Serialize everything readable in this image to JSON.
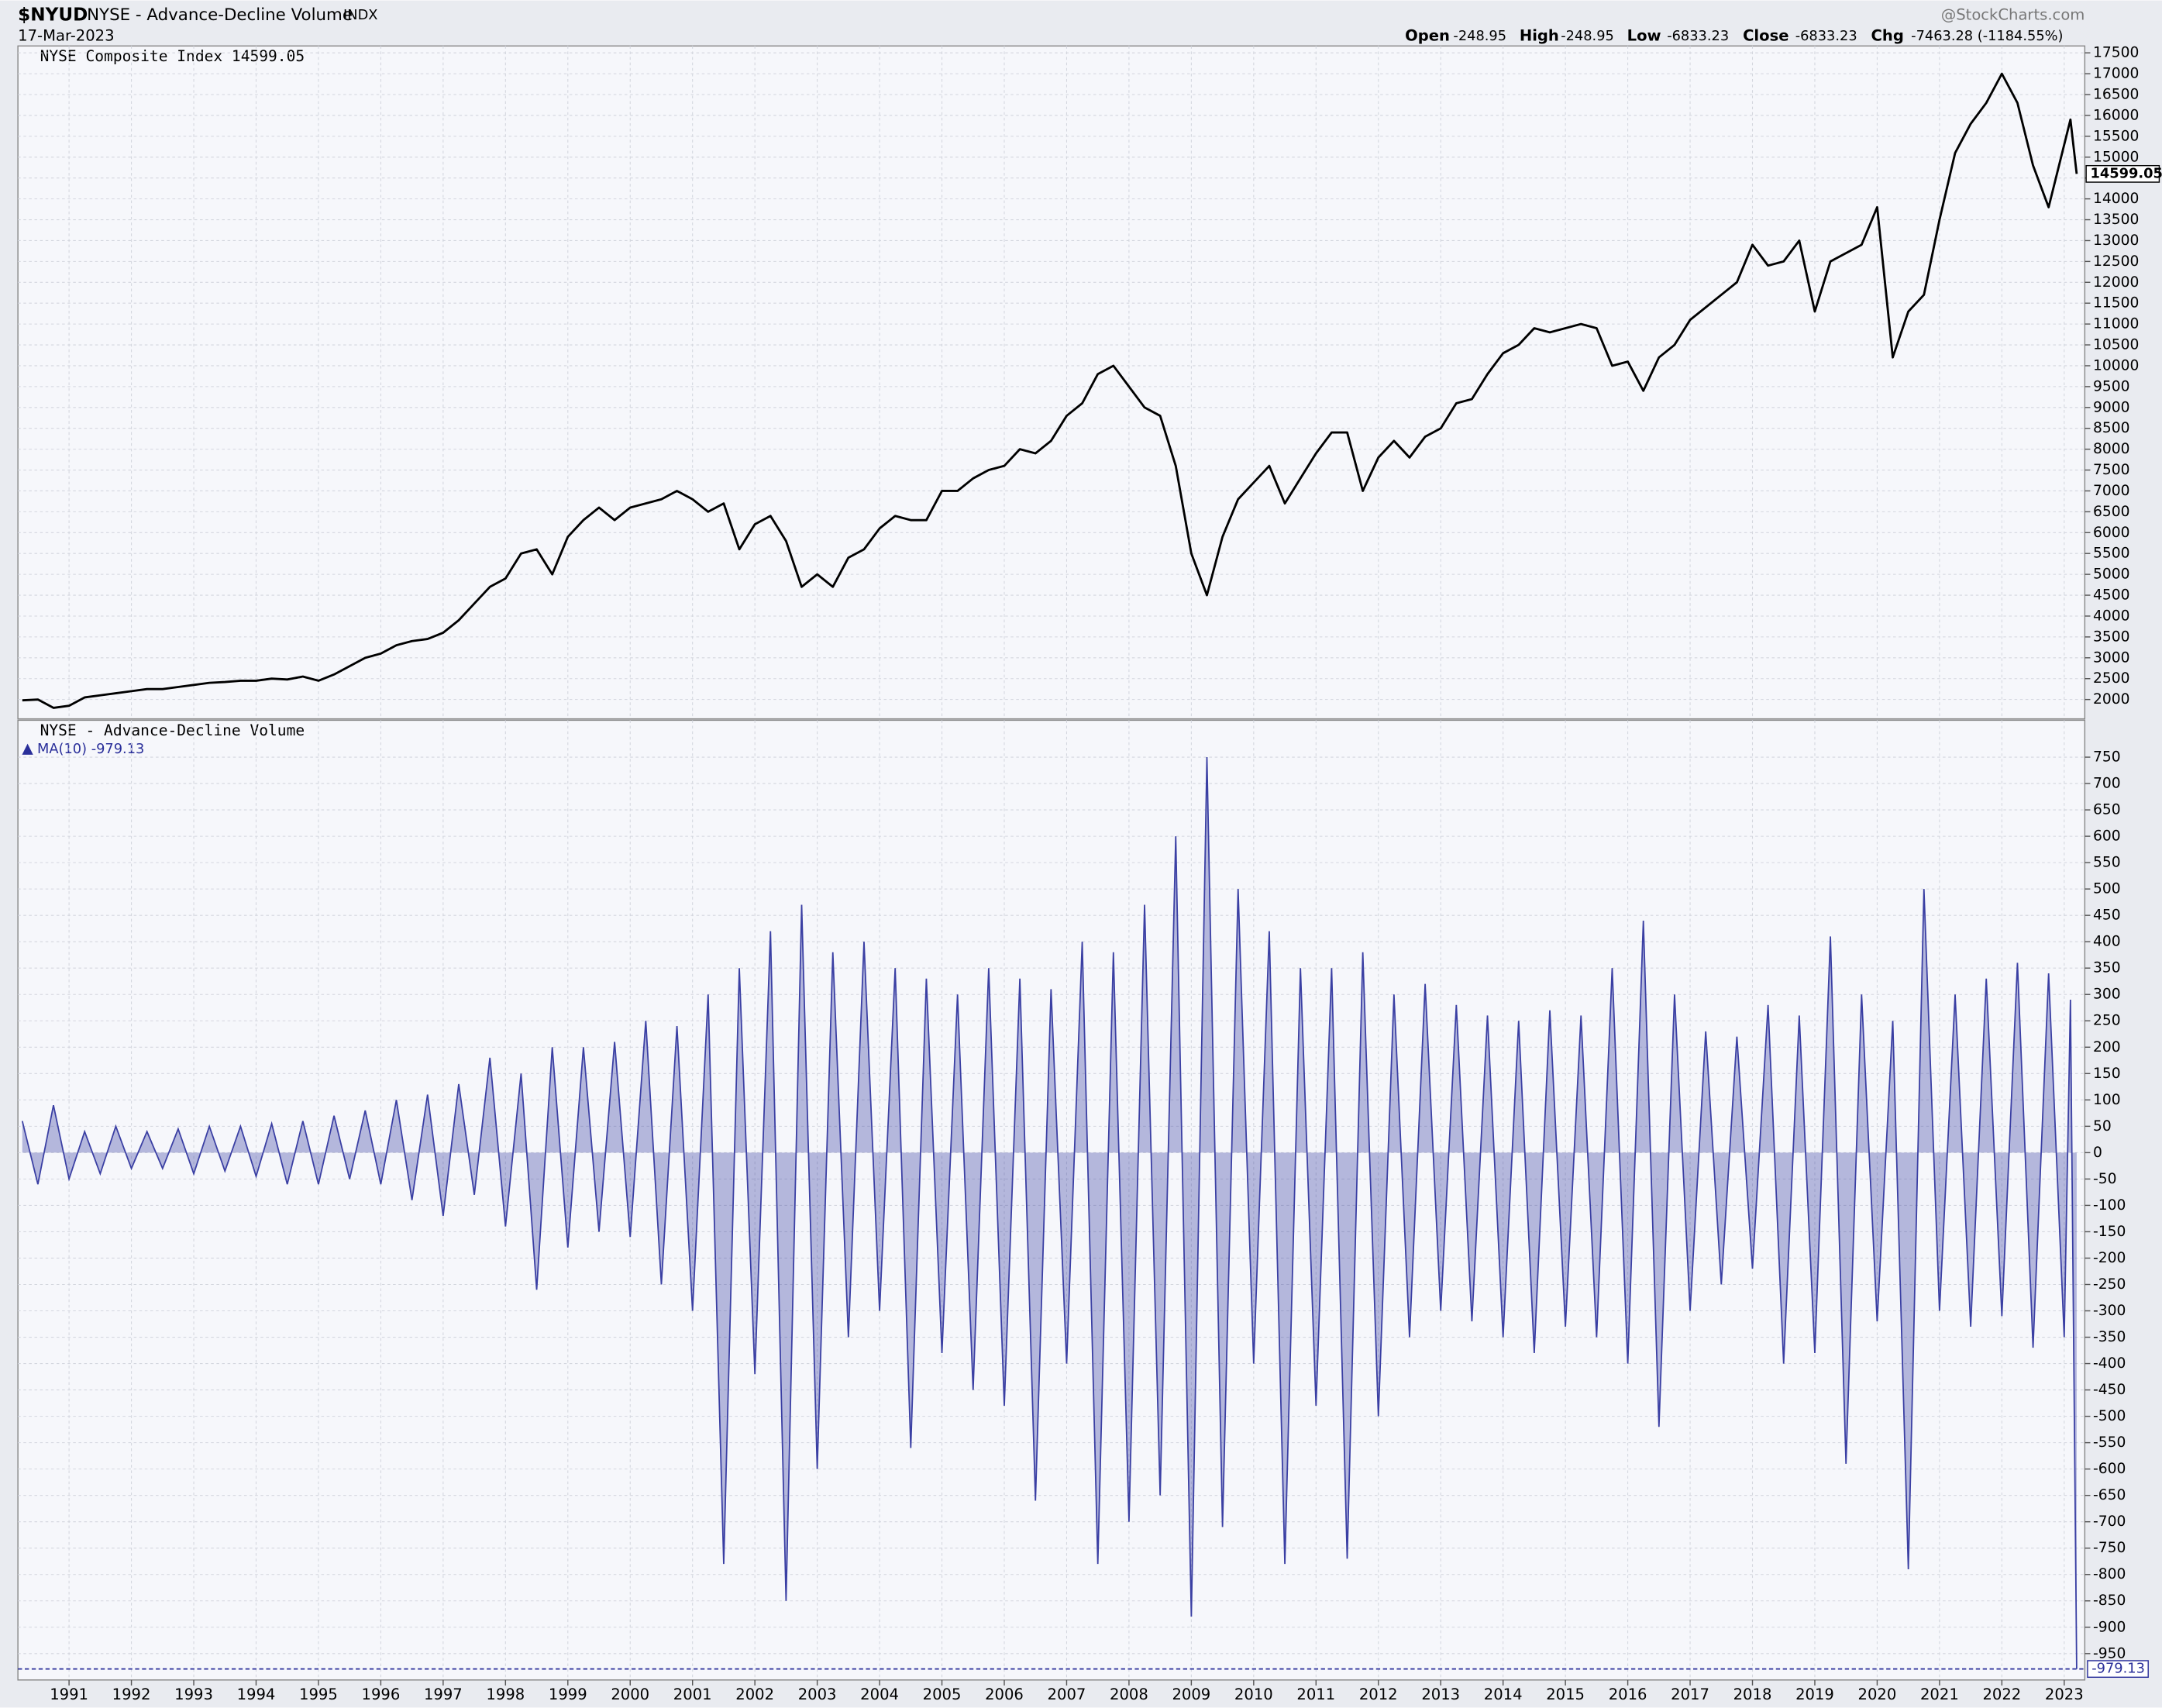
{
  "header": {
    "symbol": "$NYUD",
    "name": "NYSE - Advance-Decline Volume",
    "exchange": "INDX",
    "date": "17-Mar-2023",
    "source": "@StockCharts.com",
    "quote": [
      {
        "label": "Open",
        "value": "-248.95"
      },
      {
        "label": "High",
        "value": "-248.95"
      },
      {
        "label": "Low",
        "value": "-6833.23"
      },
      {
        "label": "Close",
        "value": "-6833.23"
      },
      {
        "label": "Chg",
        "value": "-7463.28 (-1184.55%)"
      }
    ]
  },
  "chart_data": [
    {
      "type": "line",
      "title": "NYSE Composite Index 14599.05",
      "color": "#000000",
      "grid": true,
      "last_value": 14599.05,
      "xlim": [
        1990.18,
        2023.33
      ],
      "xticks": [
        1991,
        1992,
        1993,
        1994,
        1995,
        1996,
        1997,
        1998,
        1999,
        2000,
        2001,
        2002,
        2003,
        2004,
        2005,
        2006,
        2007,
        2008,
        2009,
        2010,
        2011,
        2012,
        2013,
        2014,
        2015,
        2016,
        2017,
        2018,
        2019,
        2020,
        2021,
        2022,
        2023
      ],
      "ylim": [
        1536,
        17665
      ],
      "yticks": [
        2000,
        2500,
        3000,
        3500,
        4000,
        4500,
        5000,
        5500,
        6000,
        6500,
        7000,
        7500,
        8000,
        8500,
        9000,
        9500,
        10000,
        10500,
        11000,
        11500,
        12000,
        12500,
        13000,
        13500,
        14000,
        14500,
        15000,
        15500,
        16000,
        16500,
        17000,
        17500
      ],
      "x": [
        1990.25,
        1990.5,
        1990.75,
        1991,
        1991.25,
        1991.5,
        1991.75,
        1992,
        1992.25,
        1992.5,
        1992.75,
        1993,
        1993.25,
        1993.5,
        1993.75,
        1994,
        1994.25,
        1994.5,
        1994.75,
        1995,
        1995.25,
        1995.5,
        1995.75,
        1996,
        1996.25,
        1996.5,
        1996.75,
        1997,
        1997.25,
        1997.5,
        1997.75,
        1998,
        1998.25,
        1998.5,
        1998.75,
        1999,
        1999.25,
        1999.5,
        1999.75,
        2000,
        2000.25,
        2000.5,
        2000.75,
        2001,
        2001.25,
        2001.5,
        2001.75,
        2002,
        2002.25,
        2002.5,
        2002.75,
        2003,
        2003.25,
        2003.5,
        2003.75,
        2004,
        2004.25,
        2004.5,
        2004.75,
        2005,
        2005.25,
        2005.5,
        2005.75,
        2006,
        2006.25,
        2006.5,
        2006.75,
        2007,
        2007.25,
        2007.5,
        2007.75,
        2008,
        2008.25,
        2008.5,
        2008.75,
        2009,
        2009.25,
        2009.5,
        2009.75,
        2010,
        2010.25,
        2010.5,
        2010.75,
        2011,
        2011.25,
        2011.5,
        2011.75,
        2012,
        2012.25,
        2012.5,
        2012.75,
        2013,
        2013.25,
        2013.5,
        2013.75,
        2014,
        2014.25,
        2014.5,
        2014.75,
        2015,
        2015.25,
        2015.5,
        2015.75,
        2016,
        2016.25,
        2016.5,
        2016.75,
        2017,
        2017.25,
        2017.5,
        2017.75,
        2018,
        2018.25,
        2018.5,
        2018.75,
        2019,
        2019.25,
        2019.5,
        2019.75,
        2020,
        2020.25,
        2020.5,
        2020.75,
        2021,
        2021.25,
        2021.5,
        2021.75,
        2022,
        2022.25,
        2022.5,
        2022.75,
        2023,
        2023.1,
        2023.2
      ],
      "values": [
        1980,
        2000,
        1800,
        1850,
        2050,
        2100,
        2150,
        2200,
        2250,
        2250,
        2300,
        2350,
        2400,
        2420,
        2450,
        2450,
        2500,
        2480,
        2550,
        2450,
        2600,
        2800,
        3000,
        3100,
        3300,
        3400,
        3450,
        3600,
        3900,
        4300,
        4700,
        4900,
        5500,
        5600,
        5000,
        5900,
        6300,
        6600,
        6300,
        6600,
        6700,
        6800,
        7000,
        6800,
        6500,
        6700,
        5600,
        6200,
        6400,
        5800,
        4700,
        5000,
        4700,
        5400,
        5600,
        6100,
        6400,
        6300,
        6300,
        7000,
        7000,
        7300,
        7500,
        7600,
        8000,
        7900,
        8200,
        8800,
        9100,
        9800,
        10000,
        9500,
        9000,
        8800,
        7600,
        5500,
        4500,
        5900,
        6800,
        7200,
        7600,
        6700,
        7300,
        7900,
        8400,
        8400,
        7000,
        7800,
        8200,
        7800,
        8300,
        8500,
        9100,
        9200,
        9800,
        10300,
        10500,
        10900,
        10800,
        10900,
        11000,
        10900,
        10000,
        10100,
        9400,
        10200,
        10500,
        11100,
        11400,
        11700,
        12000,
        12900,
        12400,
        12500,
        13000,
        11300,
        12500,
        12700,
        12900,
        13800,
        10200,
        11300,
        11700,
        13500,
        15100,
        15800,
        16300,
        17000,
        16300,
        14800,
        13800,
        15300,
        15900,
        14599.05
      ]
    },
    {
      "type": "area",
      "title": "NYSE - Advance-Decline Volume",
      "legend": "MA(10) -979.13",
      "color": "#3a3fa3",
      "grid": true,
      "ma_value": -979.13,
      "xlim": [
        1990.18,
        2023.33
      ],
      "xticks": [
        1991,
        1992,
        1993,
        1994,
        1995,
        1996,
        1997,
        1998,
        1999,
        2000,
        2001,
        2002,
        2003,
        2004,
        2005,
        2006,
        2007,
        2008,
        2009,
        2010,
        2011,
        2012,
        2013,
        2014,
        2015,
        2016,
        2017,
        2018,
        2019,
        2020,
        2021,
        2022,
        2023
      ],
      "ylim": [
        -1000,
        820
      ],
      "yticks": [
        -950,
        -900,
        -850,
        -800,
        -750,
        -700,
        -650,
        -600,
        -550,
        -500,
        -450,
        -400,
        -350,
        -300,
        -250,
        -200,
        -150,
        -100,
        -50,
        0,
        50,
        100,
        150,
        200,
        250,
        300,
        350,
        400,
        450,
        500,
        550,
        600,
        650,
        700,
        750
      ],
      "x": [
        1990.25,
        1990.5,
        1990.75,
        1991,
        1991.25,
        1991.5,
        1991.75,
        1992,
        1992.25,
        1992.5,
        1992.75,
        1993,
        1993.25,
        1993.5,
        1993.75,
        1994,
        1994.25,
        1994.5,
        1994.75,
        1995,
        1995.25,
        1995.5,
        1995.75,
        1996,
        1996.25,
        1996.5,
        1996.75,
        1997,
        1997.25,
        1997.5,
        1997.75,
        1998,
        1998.25,
        1998.5,
        1998.75,
        1999,
        1999.25,
        1999.5,
        1999.75,
        2000,
        2000.25,
        2000.5,
        2000.75,
        2001,
        2001.25,
        2001.5,
        2001.75,
        2002,
        2002.25,
        2002.5,
        2002.75,
        2003,
        2003.25,
        2003.5,
        2003.75,
        2004,
        2004.25,
        2004.5,
        2004.75,
        2005,
        2005.25,
        2005.5,
        2005.75,
        2006,
        2006.25,
        2006.5,
        2006.75,
        2007,
        2007.25,
        2007.5,
        2007.75,
        2008,
        2008.25,
        2008.5,
        2008.75,
        2009,
        2009.25,
        2009.5,
        2009.75,
        2010,
        2010.25,
        2010.5,
        2010.75,
        2011,
        2011.25,
        2011.5,
        2011.75,
        2012,
        2012.25,
        2012.5,
        2012.75,
        2013,
        2013.25,
        2013.5,
        2013.75,
        2014,
        2014.25,
        2014.5,
        2014.75,
        2015,
        2015.25,
        2015.5,
        2015.75,
        2016,
        2016.25,
        2016.5,
        2016.75,
        2017,
        2017.25,
        2017.5,
        2017.75,
        2018,
        2018.25,
        2018.5,
        2018.75,
        2019,
        2019.25,
        2019.5,
        2019.75,
        2020,
        2020.25,
        2020.5,
        2020.75,
        2021,
        2021.25,
        2021.5,
        2021.75,
        2022,
        2022.25,
        2022.5,
        2022.75,
        2023,
        2023.1,
        2023.2
      ],
      "values": [
        60,
        -60,
        90,
        -50,
        40,
        -40,
        50,
        -30,
        40,
        -30,
        45,
        -40,
        50,
        -35,
        50,
        -45,
        55,
        -60,
        60,
        -60,
        70,
        -50,
        80,
        -60,
        100,
        -90,
        110,
        -120,
        130,
        -80,
        180,
        -140,
        150,
        -260,
        200,
        -180,
        200,
        -150,
        210,
        -160,
        250,
        -250,
        240,
        -300,
        300,
        -780,
        350,
        -420,
        420,
        -850,
        470,
        -600,
        380,
        -350,
        400,
        -300,
        350,
        -560,
        330,
        -380,
        300,
        -450,
        350,
        -480,
        330,
        -660,
        310,
        -400,
        400,
        -780,
        380,
        -700,
        470,
        -650,
        600,
        -880,
        750,
        -710,
        500,
        -400,
        420,
        -780,
        350,
        -480,
        350,
        -770,
        380,
        -500,
        300,
        -350,
        320,
        -300,
        280,
        -320,
        260,
        -350,
        250,
        -380,
        270,
        -330,
        260,
        -350,
        350,
        -400,
        440,
        -520,
        300,
        -300,
        230,
        -250,
        220,
        -220,
        280,
        -400,
        260,
        -380,
        410,
        -590,
        300,
        -320,
        250,
        -790,
        500,
        -300,
        300,
        -330,
        330,
        -310,
        360,
        -370,
        340,
        -350,
        290,
        -979.13
      ]
    }
  ]
}
